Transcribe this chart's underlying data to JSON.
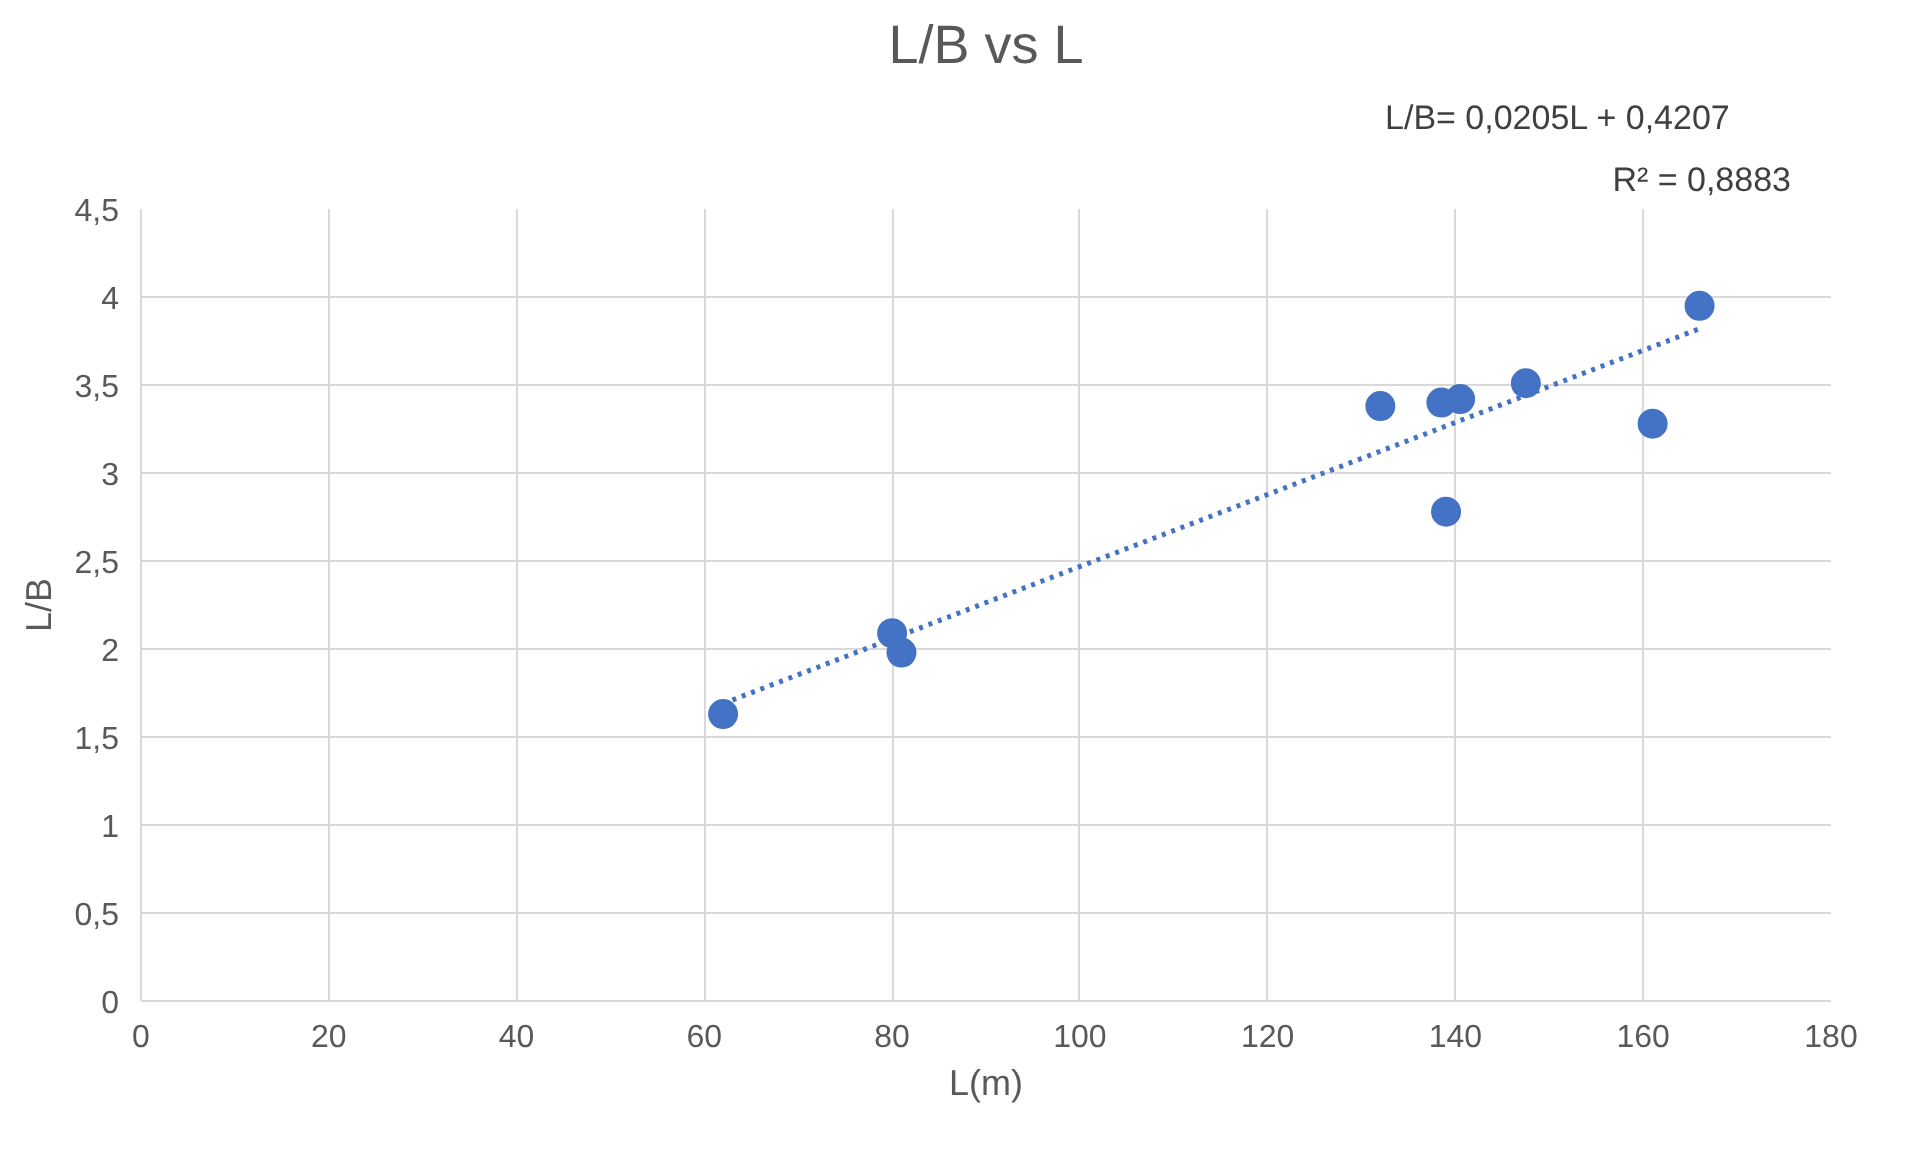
{
  "chart_data": {
    "type": "scatter",
    "title": "L/B vs L",
    "xlabel": "L(m)",
    "ylabel": "L/B",
    "annotations": [
      "L/B= 0,0205L + 0,4207",
      "R² = 0,8883"
    ],
    "xlim": [
      0,
      180
    ],
    "xticks": [
      0,
      20,
      40,
      60,
      80,
      100,
      120,
      140,
      160,
      180
    ],
    "ylim": [
      0,
      4.5
    ],
    "yticks": [
      0,
      {
        "value": 0.5,
        "label": "0,5"
      },
      1,
      {
        "value": 1.5,
        "label": "1,5"
      },
      2,
      {
        "value": 2.5,
        "label": "2,5"
      },
      3,
      {
        "value": 3.5,
        "label": "3,5"
      },
      4,
      {
        "value": 4.5,
        "label": "4,5"
      }
    ],
    "grid": true,
    "marker": "circle",
    "series": [
      {
        "color": "#4472c4",
        "x": [
          62,
          80,
          81,
          132,
          138.5,
          140.5,
          139,
          147.5,
          161,
          166
        ],
        "values": [
          1.63,
          2.09,
          1.98,
          3.38,
          3.4,
          3.42,
          2.78,
          3.51,
          3.28,
          3.95
        ]
      },
      {
        "type": "line",
        "color": "#4472c4",
        "line_style": "dotted",
        "marker": "none",
        "x": [
          62,
          166
        ],
        "values": [
          1.69,
          3.82
        ]
      }
    ]
  }
}
